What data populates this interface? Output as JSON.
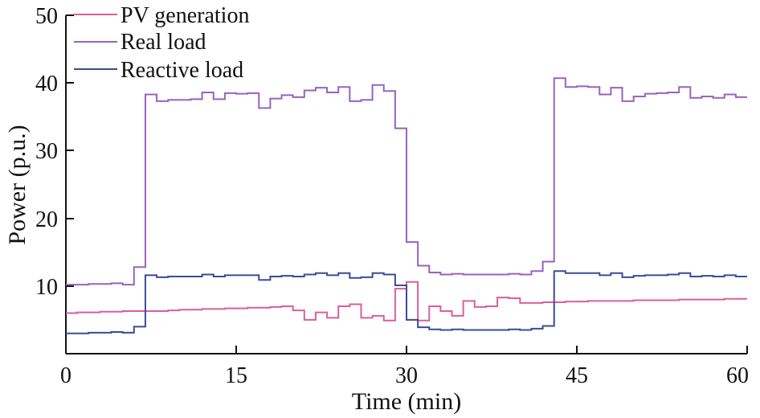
{
  "chart_data": {
    "type": "line",
    "title": "",
    "xlabel": "Time (min)",
    "ylabel": "Power (p.u.)",
    "xlim": [
      0,
      60
    ],
    "ylim": [
      0,
      50
    ],
    "ylim_visible_min": 0,
    "xticks": [
      0,
      15,
      30,
      45,
      60
    ],
    "yticks": [
      10,
      20,
      30,
      40,
      50
    ],
    "legend_position": "top-left",
    "series": [
      {
        "name": "PV generation",
        "color": "#d9609a",
        "step": true,
        "points": [
          [
            0,
            6.0
          ],
          [
            1,
            6.1
          ],
          [
            2,
            6.1
          ],
          [
            3,
            6.2
          ],
          [
            4,
            6.2
          ],
          [
            5,
            6.3
          ],
          [
            6,
            6.3
          ],
          [
            7,
            6.3
          ],
          [
            8,
            6.3
          ],
          [
            9,
            6.4
          ],
          [
            10,
            6.5
          ],
          [
            11,
            6.5
          ],
          [
            12,
            6.6
          ],
          [
            13,
            6.6
          ],
          [
            14,
            6.7
          ],
          [
            15,
            6.7
          ],
          [
            16,
            6.8
          ],
          [
            17,
            6.8
          ],
          [
            18,
            6.9
          ],
          [
            19,
            7.0
          ],
          [
            20,
            6.4
          ],
          [
            21,
            5.0
          ],
          [
            22,
            6.1
          ],
          [
            23,
            5.3
          ],
          [
            24,
            7.0
          ],
          [
            25,
            7.3
          ],
          [
            26,
            5.3
          ],
          [
            27,
            5.6
          ],
          [
            28,
            4.9
          ],
          [
            29,
            9.6
          ],
          [
            30,
            10.6
          ],
          [
            31,
            4.9
          ],
          [
            32,
            7.0
          ],
          [
            33,
            6.3
          ],
          [
            34,
            5.6
          ],
          [
            35,
            7.8
          ],
          [
            36,
            6.9
          ],
          [
            37,
            7.0
          ],
          [
            38,
            8.3
          ],
          [
            39,
            8.2
          ],
          [
            40,
            7.5
          ],
          [
            41,
            7.5
          ],
          [
            42,
            7.6
          ],
          [
            43,
            7.6
          ],
          [
            44,
            7.7
          ],
          [
            45,
            7.7
          ],
          [
            46,
            7.8
          ],
          [
            47,
            7.8
          ],
          [
            48,
            7.8
          ],
          [
            49,
            7.8
          ],
          [
            50,
            7.9
          ],
          [
            51,
            7.9
          ],
          [
            52,
            7.9
          ],
          [
            53,
            7.9
          ],
          [
            54,
            8.0
          ],
          [
            55,
            8.0
          ],
          [
            56,
            8.0
          ],
          [
            57,
            8.0
          ],
          [
            58,
            8.1
          ],
          [
            59,
            8.1
          ],
          [
            60,
            8.1
          ]
        ]
      },
      {
        "name": "Real load",
        "color": "#9a62be",
        "step": true,
        "points": [
          [
            0,
            10.2
          ],
          [
            1,
            10.2
          ],
          [
            2,
            10.3
          ],
          [
            3,
            10.3
          ],
          [
            4,
            10.4
          ],
          [
            5,
            10.2
          ],
          [
            6,
            12.8
          ],
          [
            7,
            38.3
          ],
          [
            8,
            37.3
          ],
          [
            9,
            37.5
          ],
          [
            10,
            37.5
          ],
          [
            11,
            37.6
          ],
          [
            12,
            38.6
          ],
          [
            13,
            37.6
          ],
          [
            14,
            38.5
          ],
          [
            15,
            38.4
          ],
          [
            16,
            38.5
          ],
          [
            17,
            36.3
          ],
          [
            18,
            37.7
          ],
          [
            19,
            38.2
          ],
          [
            20,
            37.9
          ],
          [
            21,
            38.9
          ],
          [
            22,
            39.3
          ],
          [
            23,
            38.6
          ],
          [
            24,
            39.4
          ],
          [
            25,
            37.3
          ],
          [
            26,
            37.5
          ],
          [
            27,
            39.7
          ],
          [
            28,
            38.8
          ],
          [
            29,
            33.3
          ],
          [
            30,
            16.5
          ],
          [
            31,
            13.0
          ],
          [
            32,
            12.0
          ],
          [
            33,
            11.7
          ],
          [
            34,
            11.8
          ],
          [
            35,
            11.7
          ],
          [
            36,
            11.7
          ],
          [
            37,
            11.7
          ],
          [
            38,
            11.7
          ],
          [
            39,
            11.8
          ],
          [
            40,
            11.7
          ],
          [
            41,
            12.2
          ],
          [
            42,
            13.6
          ],
          [
            43,
            40.7
          ],
          [
            44,
            39.4
          ],
          [
            45,
            39.5
          ],
          [
            46,
            39.4
          ],
          [
            47,
            38.3
          ],
          [
            48,
            39.3
          ],
          [
            49,
            37.3
          ],
          [
            50,
            38.0
          ],
          [
            51,
            38.4
          ],
          [
            52,
            38.5
          ],
          [
            53,
            38.6
          ],
          [
            54,
            39.4
          ],
          [
            55,
            37.8
          ],
          [
            56,
            38.0
          ],
          [
            57,
            37.8
          ],
          [
            58,
            38.3
          ],
          [
            59,
            37.9
          ],
          [
            60,
            37.9
          ]
        ]
      },
      {
        "name": "Reactive load",
        "color": "#3b4c96",
        "step": true,
        "points": [
          [
            0,
            3.0
          ],
          [
            1,
            3.0
          ],
          [
            2,
            3.1
          ],
          [
            3,
            3.1
          ],
          [
            4,
            3.2
          ],
          [
            5,
            3.1
          ],
          [
            6,
            4.0
          ],
          [
            7,
            11.6
          ],
          [
            8,
            11.3
          ],
          [
            9,
            11.4
          ],
          [
            10,
            11.4
          ],
          [
            11,
            11.4
          ],
          [
            12,
            11.7
          ],
          [
            13,
            11.4
          ],
          [
            14,
            11.6
          ],
          [
            15,
            11.6
          ],
          [
            16,
            11.6
          ],
          [
            17,
            10.9
          ],
          [
            18,
            11.4
          ],
          [
            19,
            11.5
          ],
          [
            20,
            11.4
          ],
          [
            21,
            11.7
          ],
          [
            22,
            11.9
          ],
          [
            23,
            11.6
          ],
          [
            24,
            11.9
          ],
          [
            25,
            11.2
          ],
          [
            26,
            11.3
          ],
          [
            27,
            11.9
          ],
          [
            28,
            11.7
          ],
          [
            29,
            10.1
          ],
          [
            30,
            5.0
          ],
          [
            31,
            3.9
          ],
          [
            32,
            3.6
          ],
          [
            33,
            3.5
          ],
          [
            34,
            3.6
          ],
          [
            35,
            3.5
          ],
          [
            36,
            3.5
          ],
          [
            37,
            3.5
          ],
          [
            38,
            3.5
          ],
          [
            39,
            3.6
          ],
          [
            40,
            3.5
          ],
          [
            41,
            3.7
          ],
          [
            42,
            4.1
          ],
          [
            43,
            12.2
          ],
          [
            44,
            11.9
          ],
          [
            45,
            11.9
          ],
          [
            46,
            11.9
          ],
          [
            47,
            11.6
          ],
          [
            48,
            11.9
          ],
          [
            49,
            11.3
          ],
          [
            50,
            11.5
          ],
          [
            51,
            11.6
          ],
          [
            52,
            11.6
          ],
          [
            53,
            11.7
          ],
          [
            54,
            11.9
          ],
          [
            55,
            11.4
          ],
          [
            56,
            11.5
          ],
          [
            57,
            11.4
          ],
          [
            58,
            11.6
          ],
          [
            59,
            11.4
          ],
          [
            60,
            11.4
          ]
        ]
      }
    ]
  }
}
